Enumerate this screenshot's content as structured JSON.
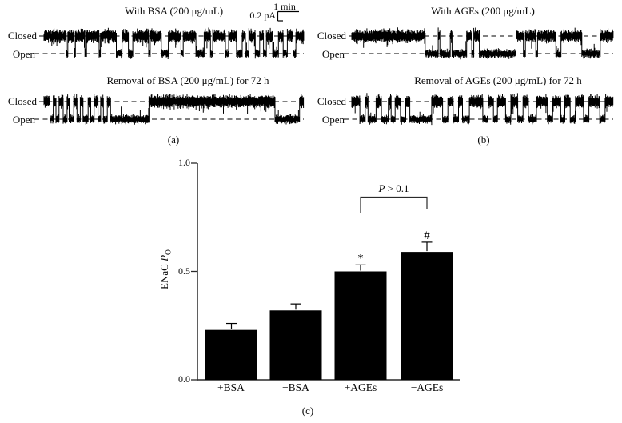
{
  "figure": {
    "background": "#ffffff",
    "ink_color": "#000000",
    "panel_a": {
      "panel_label": "(a)",
      "trace_top_title": "With BSA (200 μg/mL)",
      "trace_bottom_title": "Removal of BSA (200 μg/mL) for 72 h",
      "closed_label": "Closed",
      "open_label": "Open"
    },
    "panel_b": {
      "panel_label": "(b)",
      "trace_top_title": "With AGEs (200 μg/mL)",
      "trace_bottom_title": "Removal of AGEs (200 μg/mL) for 72 h",
      "closed_label": "Closed",
      "open_label": "Open"
    },
    "scale_bar": {
      "amplitude_label": "0.2 pA",
      "time_label": "1 min"
    },
    "panel_c_label": "(c)"
  },
  "chart_data": {
    "type": "bar",
    "title": "",
    "categories": [
      "+BSA",
      "−BSA",
      "+AGEs",
      "−AGEs"
    ],
    "values": [
      0.23,
      0.32,
      0.5,
      0.59
    ],
    "errors": [
      0.03,
      0.03,
      0.03,
      0.045
    ],
    "bar_annotations": [
      "",
      "",
      "*",
      "#"
    ],
    "ylabel_prefix": "ENaC ",
    "ylabel_symbol": "P",
    "ylabel_subscript": "O",
    "ylim": [
      0,
      1
    ],
    "yticks": [
      "0.0",
      "0.5",
      "1.0"
    ],
    "bar_color": "#000000",
    "grid": false,
    "legend": null,
    "significance": {
      "between": [
        "+AGEs",
        "−AGEs"
      ],
      "symbol": "P",
      "rest": " > 0.1"
    }
  },
  "traces": [
    {
      "name": "with-bsa",
      "panel": "a",
      "row": "top",
      "seed": 7,
      "segments": "C7 O0.5 C2 O0.4 C3 O0.5 C4 O0.4 C5 O1.8 C2 O1.4 C5 O0.5 C3.5 O2.2 C4 O0.7 C4 O2.6 C2 O0.7 C4 O1 C2.5 O1.8 C1 O1.1 C2 O1.4 C1.2 O0.9 C2 O1.8 C1.5 O1.3 C1.8 O0.9 C2.5"
    },
    {
      "name": "removal-bsa",
      "panel": "a",
      "row": "bottom",
      "seed": 13,
      "segments": "C2 O1.1 C0.9 O1 C1.4 O1.3 C0.7 O1.5 C1.1 O1.1 C0.9 O1.7 C0.9 O1.1 C1.3 O0.9 C0.9 O1.3 C1.1 O12.8 C42 O8.2 C1.4"
    },
    {
      "name": "with-ages",
      "panel": "b",
      "row": "top",
      "seed": 23,
      "segments": "C26 O4.6 C0.6 O3.7 C0.6 O5.2 C1.8 O0.7 C2 O13 C2.6 O0.7 C3.7 O0.6 C6.5 O1.8 C7.4 O6.5 C4.6"
    },
    {
      "name": "removal-ages",
      "panel": "b",
      "row": "bottom",
      "seed": 41,
      "segments": "C2.6 O1.7 C0.9 O2.6 C1.7 O2.2 C0.9 O1.3 C1.7 O1.7 C1.3 O7 C3.5 O1.7 C1.7 O1.7 C1.3 O2.2 C4.3 O1.7 C1.7 O1.3 C2.6 O1.7 C2.2 O1.7 C1.7 O2.6 C3.5 O1.7 C2.6 O1.3 C1.7 O1.7 C2.6 O1.7 C3.5 O1.7 C2.6"
    }
  ]
}
